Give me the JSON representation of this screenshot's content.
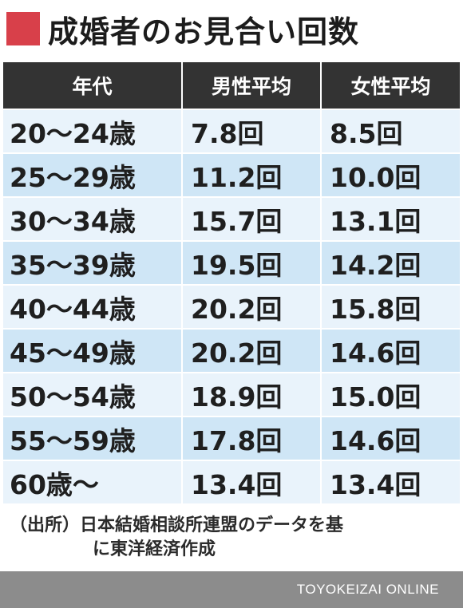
{
  "title": {
    "text": "成婚者のお見合い回数",
    "accent_color": "#d8404a"
  },
  "table": {
    "headers": [
      "年代",
      "男性平均",
      "女性平均"
    ],
    "rows": [
      {
        "age": "20〜24歳",
        "male": "7.8回",
        "female": "8.5回"
      },
      {
        "age": "25〜29歳",
        "male": "11.2回",
        "female": "10.0回"
      },
      {
        "age": "30〜34歳",
        "male": "15.7回",
        "female": "13.1回"
      },
      {
        "age": "35〜39歳",
        "male": "19.5回",
        "female": "14.2回"
      },
      {
        "age": "40〜44歳",
        "male": "20.2回",
        "female": "15.8回"
      },
      {
        "age": "45〜49歳",
        "male": "20.2回",
        "female": "14.6回"
      },
      {
        "age": "50〜54歳",
        "male": "18.9回",
        "female": "15.0回"
      },
      {
        "age": "55〜59歳",
        "male": "17.8回",
        "female": "14.6回"
      },
      {
        "age": "60歳〜",
        "male": "13.4回",
        "female": "13.4回"
      }
    ],
    "header_bg": "#333333",
    "row_colors": [
      "#e9f3fb",
      "#cfe6f6"
    ]
  },
  "source": {
    "line1": "（出所）日本結婚相談所連盟のデータを基",
    "line2": "に東洋経済作成"
  },
  "footer": {
    "brand": "TOYOKEIZAI ONLINE",
    "bg": "#8c8c8c"
  }
}
